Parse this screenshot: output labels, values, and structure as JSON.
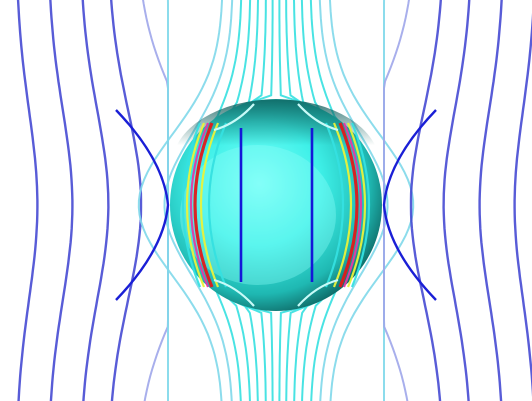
{
  "figure": {
    "kind": "streamlines-around-sphere",
    "background": "#ffffff",
    "colors": {
      "sphere_light": "#66fff4",
      "sphere_mid": "#2fe0d8",
      "sphere_dark": "#0f6f6c",
      "line_far": "#3b3fd0",
      "line_near": "#9fa6ea",
      "line_cyan": "#35e0e0",
      "line_yellow": "#eaf23a",
      "line_red": "#e01919",
      "line_magenta": "#e23aa8",
      "line_inner": "#1418d8"
    },
    "streamline_offsets": [
      -260,
      -228,
      -196,
      -168,
      -140,
      -116,
      -96,
      -78,
      -62,
      -46,
      -32,
      -18,
      -6,
      6,
      18,
      32,
      46,
      62,
      78,
      96,
      116,
      140,
      168,
      196,
      228,
      260
    ]
  }
}
